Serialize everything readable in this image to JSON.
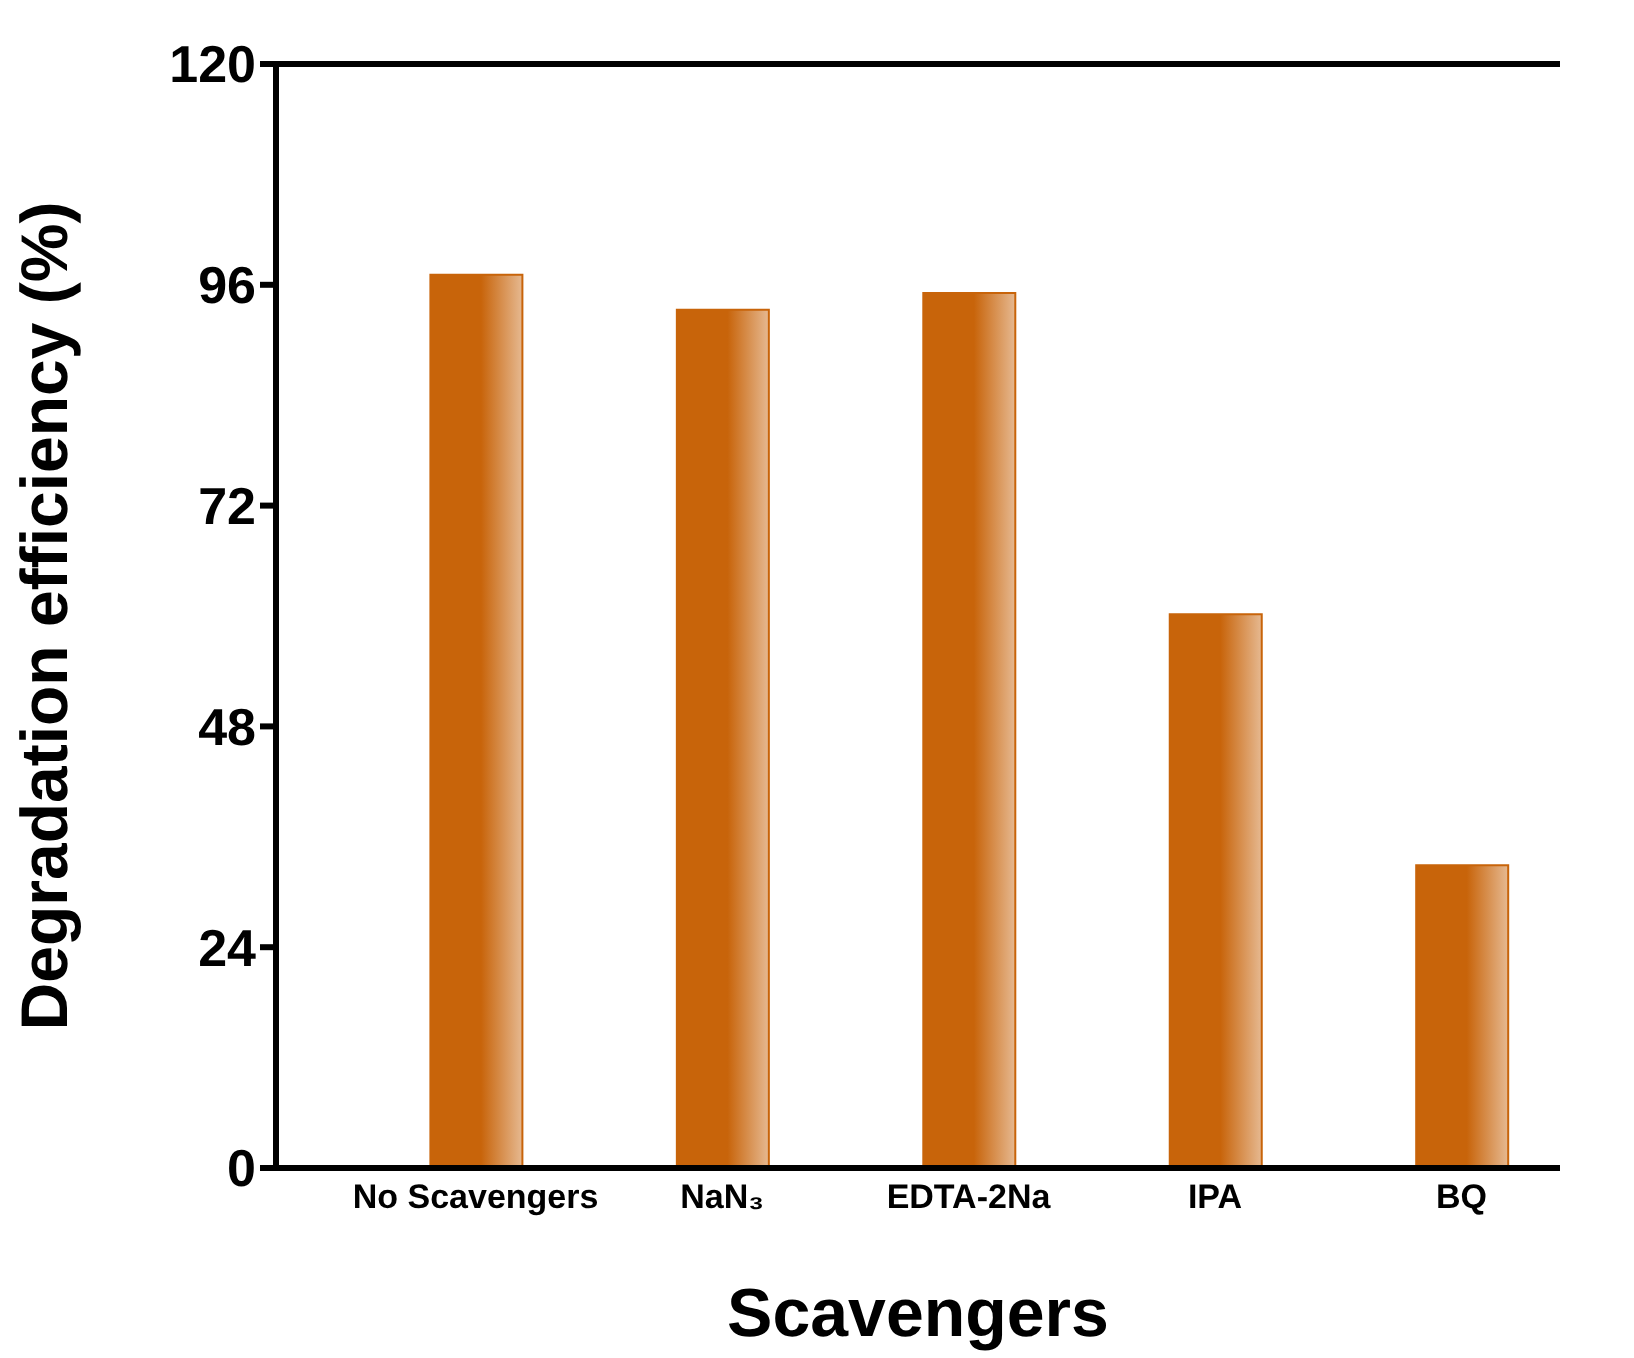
{
  "chart_data": {
    "type": "bar",
    "xlabel": "Scavengers",
    "ylabel": "Degradation efficiency (%)",
    "categories": [
      "No Scavengers",
      "NaN₃",
      "EDTA-2Na",
      "IPA",
      "BQ"
    ],
    "values": [
      97.1,
      93.3,
      95.1,
      60.2,
      32.9
    ],
    "color": "#c8640a",
    "ylim": [
      0,
      120
    ],
    "yticks": [
      0,
      24,
      48,
      72,
      96,
      120
    ],
    "grid": false
  }
}
